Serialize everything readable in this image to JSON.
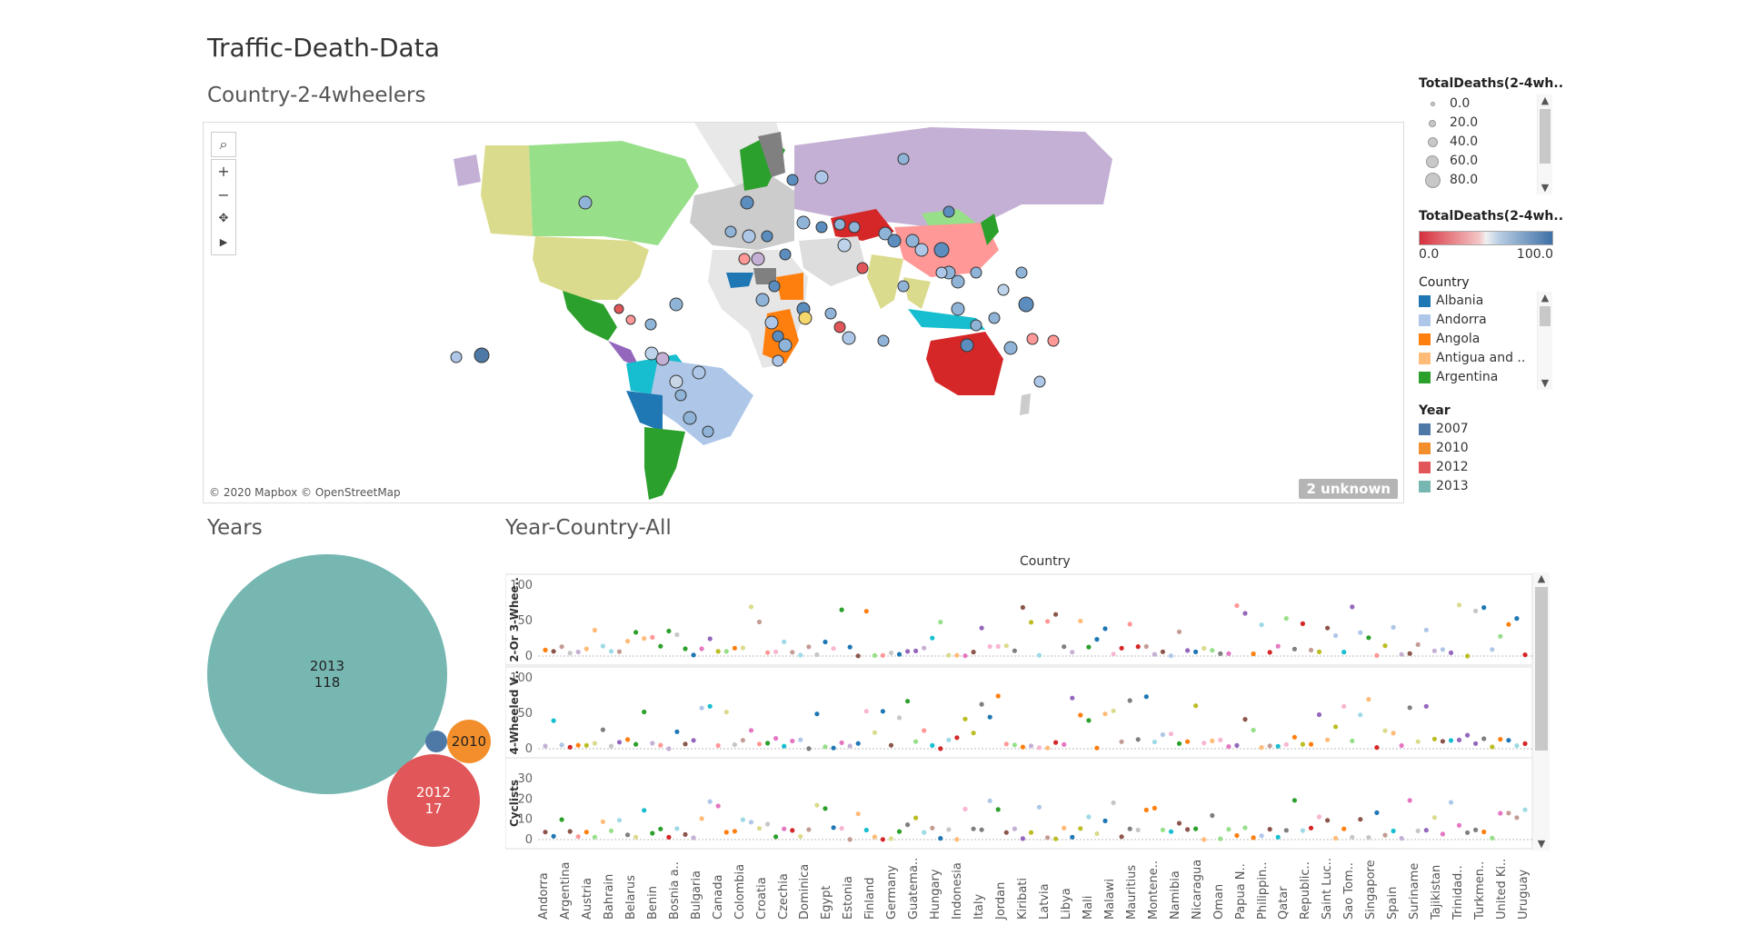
{
  "title": "Traffic-Death-Data",
  "map_section": {
    "title": "Country-2-4wheelers",
    "credit": "© 2020 Mapbox © OpenStreetMap",
    "unknown": "2 unknown",
    "controls": [
      "search-icon",
      "zoom-in-icon",
      "zoom-out-icon",
      "pan-select-icon",
      "expand-arrow-icon"
    ]
  },
  "legend_size": {
    "title": "TotalDeaths(2-4wh..",
    "items": [
      "0.0",
      "20.0",
      "40.0",
      "60.0",
      "80.0"
    ]
  },
  "legend_color": {
    "title": "TotalDeaths(2-4wh..",
    "min": "0.0",
    "max": "100.0",
    "low_color": "#d62f3c",
    "high_color": "#3e6fa6"
  },
  "legend_country": {
    "title": "Country",
    "items": [
      {
        "label": "Albania",
        "color": "#1f77b4"
      },
      {
        "label": "Andorra",
        "color": "#aec7e8"
      },
      {
        "label": "Angola",
        "color": "#ff7f0e"
      },
      {
        "label": "Antigua and ..",
        "color": "#ffbb78"
      },
      {
        "label": "Argentina",
        "color": "#2ca02c"
      }
    ]
  },
  "legend_year": {
    "title": "Year",
    "items": [
      {
        "label": "2007",
        "color": "#4e79a7"
      },
      {
        "label": "2010",
        "color": "#f28e2b"
      },
      {
        "label": "2012",
        "color": "#e15759"
      },
      {
        "label": "2013",
        "color": "#76b7b2"
      }
    ]
  },
  "years_section": {
    "title": "Years",
    "bubbles": [
      {
        "year": "2013",
        "value": "118",
        "color": "#76b7b2"
      },
      {
        "year": "2012",
        "value": "17",
        "color": "#e15759"
      },
      {
        "year": "2010",
        "value": "",
        "color": "#f28e2b"
      },
      {
        "year": "",
        "value": "",
        "color": "#4e79a7"
      }
    ]
  },
  "scatter_section": {
    "title": "Year-Country-All",
    "header": "Country",
    "row_labels": [
      "2-Or 3-Whee..",
      "4-Wheeled V..",
      "Cyclists"
    ],
    "countries": [
      "Andorra",
      "Argentina",
      "Austria",
      "Bahrain",
      "Belarus",
      "Benin",
      "Bosnia a..",
      "Bulgaria",
      "Canada",
      "Colombia",
      "Croatia",
      "Czechia",
      "Dominica",
      "Egypt",
      "Estonia",
      "Finland",
      "Germany",
      "Guatema..",
      "Hungary",
      "Indonesia",
      "Italy",
      "Jordan",
      "Kiribati",
      "Latvia",
      "Libya",
      "Mali",
      "Malawi",
      "Mauritius",
      "Montene..",
      "Namibia",
      "Nicaragua",
      "Oman",
      "Papua N..",
      "Philippin..",
      "Qatar",
      "Republic..",
      "Saint Luc..",
      "Sao Tom..",
      "Singapore",
      "Spain",
      "Suriname",
      "Tajikistan",
      "Trinidad..",
      "Turkmen..",
      "United Ki..",
      "Uruguay"
    ]
  },
  "chart_data": {
    "type": "scatter",
    "x_label": "Country",
    "panels": [
      {
        "name": "2-Or 3-Whee..",
        "ylim": [
          0,
          100
        ],
        "ticks": [
          0,
          50,
          100
        ]
      },
      {
        "name": "4-Wheeled V..",
        "ylim": [
          0,
          100
        ],
        "ticks": [
          0,
          50,
          100
        ]
      },
      {
        "name": "Cyclists",
        "ylim": [
          0,
          35
        ],
        "ticks": [
          0,
          10,
          20,
          30
        ]
      }
    ]
  }
}
